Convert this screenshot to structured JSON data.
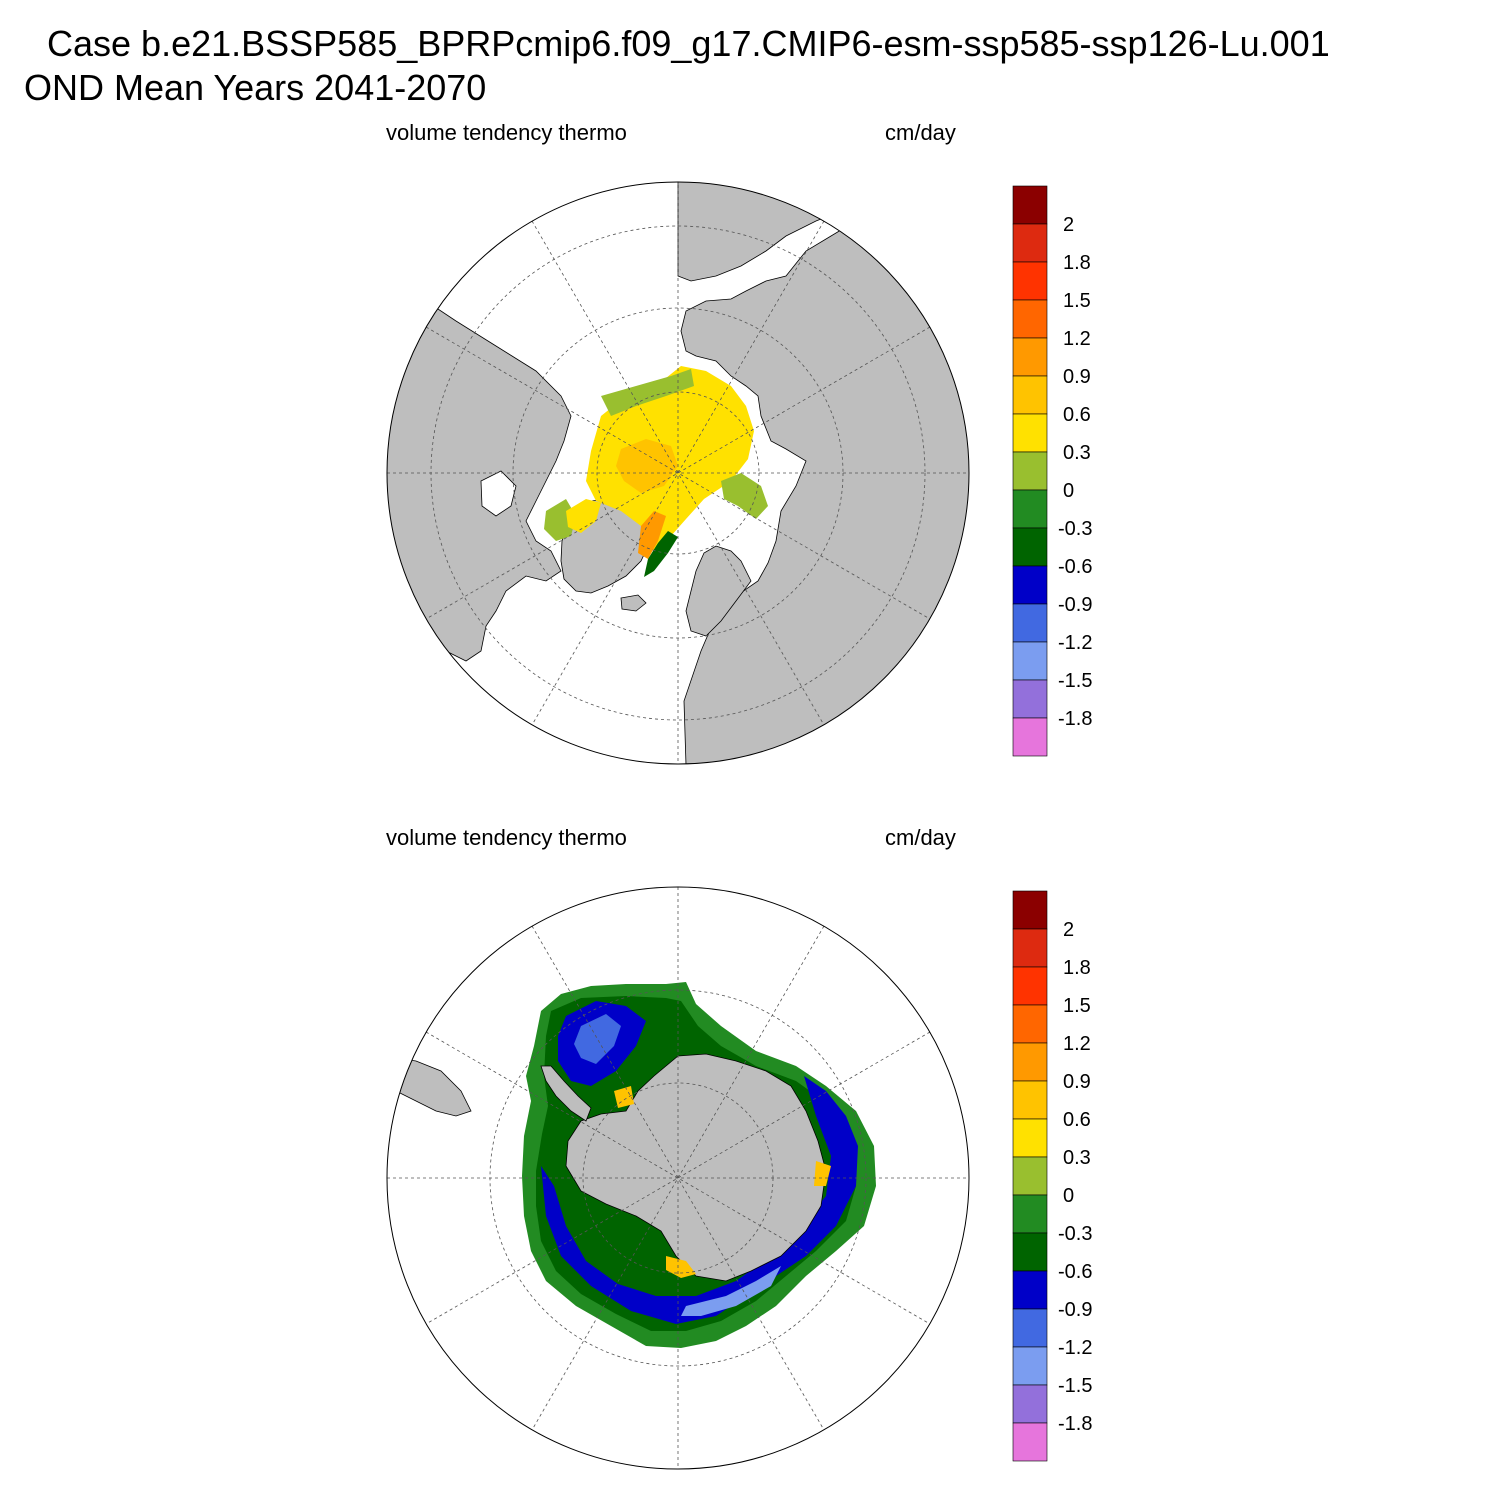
{
  "title": {
    "line1": "Case b.e21.BSSP585_BPRPcmip6.f09_g17.CMIP6-esm-ssp585-ssp126-Lu.001",
    "line2": "OND Mean   Years 2041-2070"
  },
  "panels": [
    {
      "id": "north",
      "variable_label": "volume tendency thermo",
      "units_label": "cm/day"
    },
    {
      "id": "south",
      "variable_label": "volume tendency thermo",
      "units_label": "cm/day"
    }
  ],
  "colorbar": {
    "tick_labels": [
      "2",
      "1.8",
      "1.5",
      "1.2",
      "0.9",
      "0.6",
      "0.3",
      "0",
      "-0.3",
      "-0.6",
      "-0.9",
      "-1.2",
      "-1.5",
      "-1.8"
    ],
    "colors_top_to_bottom": [
      "#8b0000",
      "#dd2a10",
      "#ff3300",
      "#ff6600",
      "#ff9900",
      "#ffc300",
      "#ffe100",
      "#99bf2f",
      "#228b22",
      "#006400",
      "#0000c8",
      "#4169e1",
      "#7b9df0",
      "#9370db",
      "#e675dc"
    ]
  },
  "colors": {
    "land": "#bebebe",
    "ocean": "#ffffff",
    "grid": "#555555"
  }
}
